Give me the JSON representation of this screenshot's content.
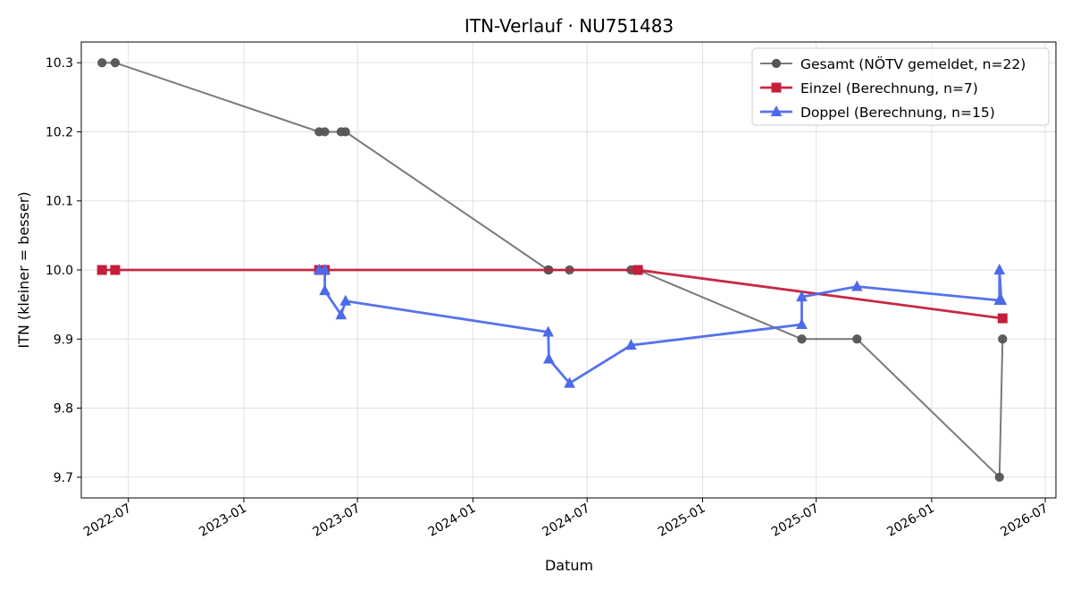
{
  "chart_data": {
    "type": "line",
    "title": "ITN-Verlauf · NU751483",
    "xlabel": "Datum",
    "ylabel": "ITN  (kleiner = besser)",
    "x_axis": "date",
    "xlim": [
      "2022-04-17",
      "2026-07-18"
    ],
    "ylim": [
      9.67,
      10.33
    ],
    "x_ticks": [
      {
        "date": "2022-07-01",
        "label": "2022-07"
      },
      {
        "date": "2023-01-01",
        "label": "2023-01"
      },
      {
        "date": "2023-07-01",
        "label": "2023-07"
      },
      {
        "date": "2024-01-01",
        "label": "2024-01"
      },
      {
        "date": "2024-07-01",
        "label": "2024-07"
      },
      {
        "date": "2025-01-01",
        "label": "2025-01"
      },
      {
        "date": "2025-07-01",
        "label": "2025-07"
      },
      {
        "date": "2026-01-01",
        "label": "2026-01"
      },
      {
        "date": "2026-07-01",
        "label": "2026-07"
      }
    ],
    "y_ticks": [
      {
        "value": 9.7,
        "label": "9.7"
      },
      {
        "value": 9.8,
        "label": "9.8"
      },
      {
        "value": 9.9,
        "label": "9.9"
      },
      {
        "value": 10.0,
        "label": "10.0"
      },
      {
        "value": 10.1,
        "label": "10.1"
      },
      {
        "value": 10.2,
        "label": "10.2"
      },
      {
        "value": 10.3,
        "label": "10.3"
      }
    ],
    "grid": true,
    "legend_position": "top-right",
    "series": [
      {
        "name": "Gesamt (NÖTV gemeldet, n=22)",
        "color": "#555555",
        "marker": "circle",
        "points": [
          {
            "x": "2022-05-20",
            "y": 10.3
          },
          {
            "x": "2022-06-10",
            "y": 10.3
          },
          {
            "x": "2023-05-01",
            "y": 10.2
          },
          {
            "x": "2023-05-10",
            "y": 10.2
          },
          {
            "x": "2023-06-05",
            "y": 10.2
          },
          {
            "x": "2023-06-12",
            "y": 10.2
          },
          {
            "x": "2024-04-30",
            "y": 10.0
          },
          {
            "x": "2024-05-01",
            "y": 10.0
          },
          {
            "x": "2024-06-03",
            "y": 10.0
          },
          {
            "x": "2024-09-09",
            "y": 10.0
          },
          {
            "x": "2024-09-20",
            "y": 10.0
          },
          {
            "x": "2025-06-08",
            "y": 9.9
          },
          {
            "x": "2025-09-04",
            "y": 9.9
          },
          {
            "x": "2026-04-19",
            "y": 9.7
          },
          {
            "x": "2026-04-24",
            "y": 9.9
          }
        ]
      },
      {
        "name": "Einzel (Berechnung, n=7)",
        "color": "#c41e3a",
        "marker": "square",
        "points": [
          {
            "x": "2022-05-20",
            "y": 10.0
          },
          {
            "x": "2022-06-10",
            "y": 10.0
          },
          {
            "x": "2023-05-01",
            "y": 10.0
          },
          {
            "x": "2023-05-10",
            "y": 10.0
          },
          {
            "x": "2024-09-20",
            "y": 10.0
          },
          {
            "x": "2026-04-24",
            "y": 9.93
          }
        ]
      },
      {
        "name": "Doppel (Berechnung, n=15)",
        "color": "#4d6aea",
        "marker": "triangle",
        "points": [
          {
            "x": "2023-05-01",
            "y": 10.0
          },
          {
            "x": "2023-05-10",
            "y": 10.0
          },
          {
            "x": "2023-05-10",
            "y": 9.97
          },
          {
            "x": "2023-06-05",
            "y": 9.935
          },
          {
            "x": "2023-06-12",
            "y": 9.955
          },
          {
            "x": "2024-04-30",
            "y": 9.91
          },
          {
            "x": "2024-05-01",
            "y": 9.871
          },
          {
            "x": "2024-06-03",
            "y": 9.836
          },
          {
            "x": "2024-09-09",
            "y": 9.891
          },
          {
            "x": "2025-06-08",
            "y": 9.921
          },
          {
            "x": "2025-06-08",
            "y": 9.961
          },
          {
            "x": "2025-09-04",
            "y": 9.976
          },
          {
            "x": "2026-04-19",
            "y": 9.956
          },
          {
            "x": "2026-04-19",
            "y": 10.0
          },
          {
            "x": "2026-04-22",
            "y": 9.956
          }
        ]
      }
    ]
  }
}
